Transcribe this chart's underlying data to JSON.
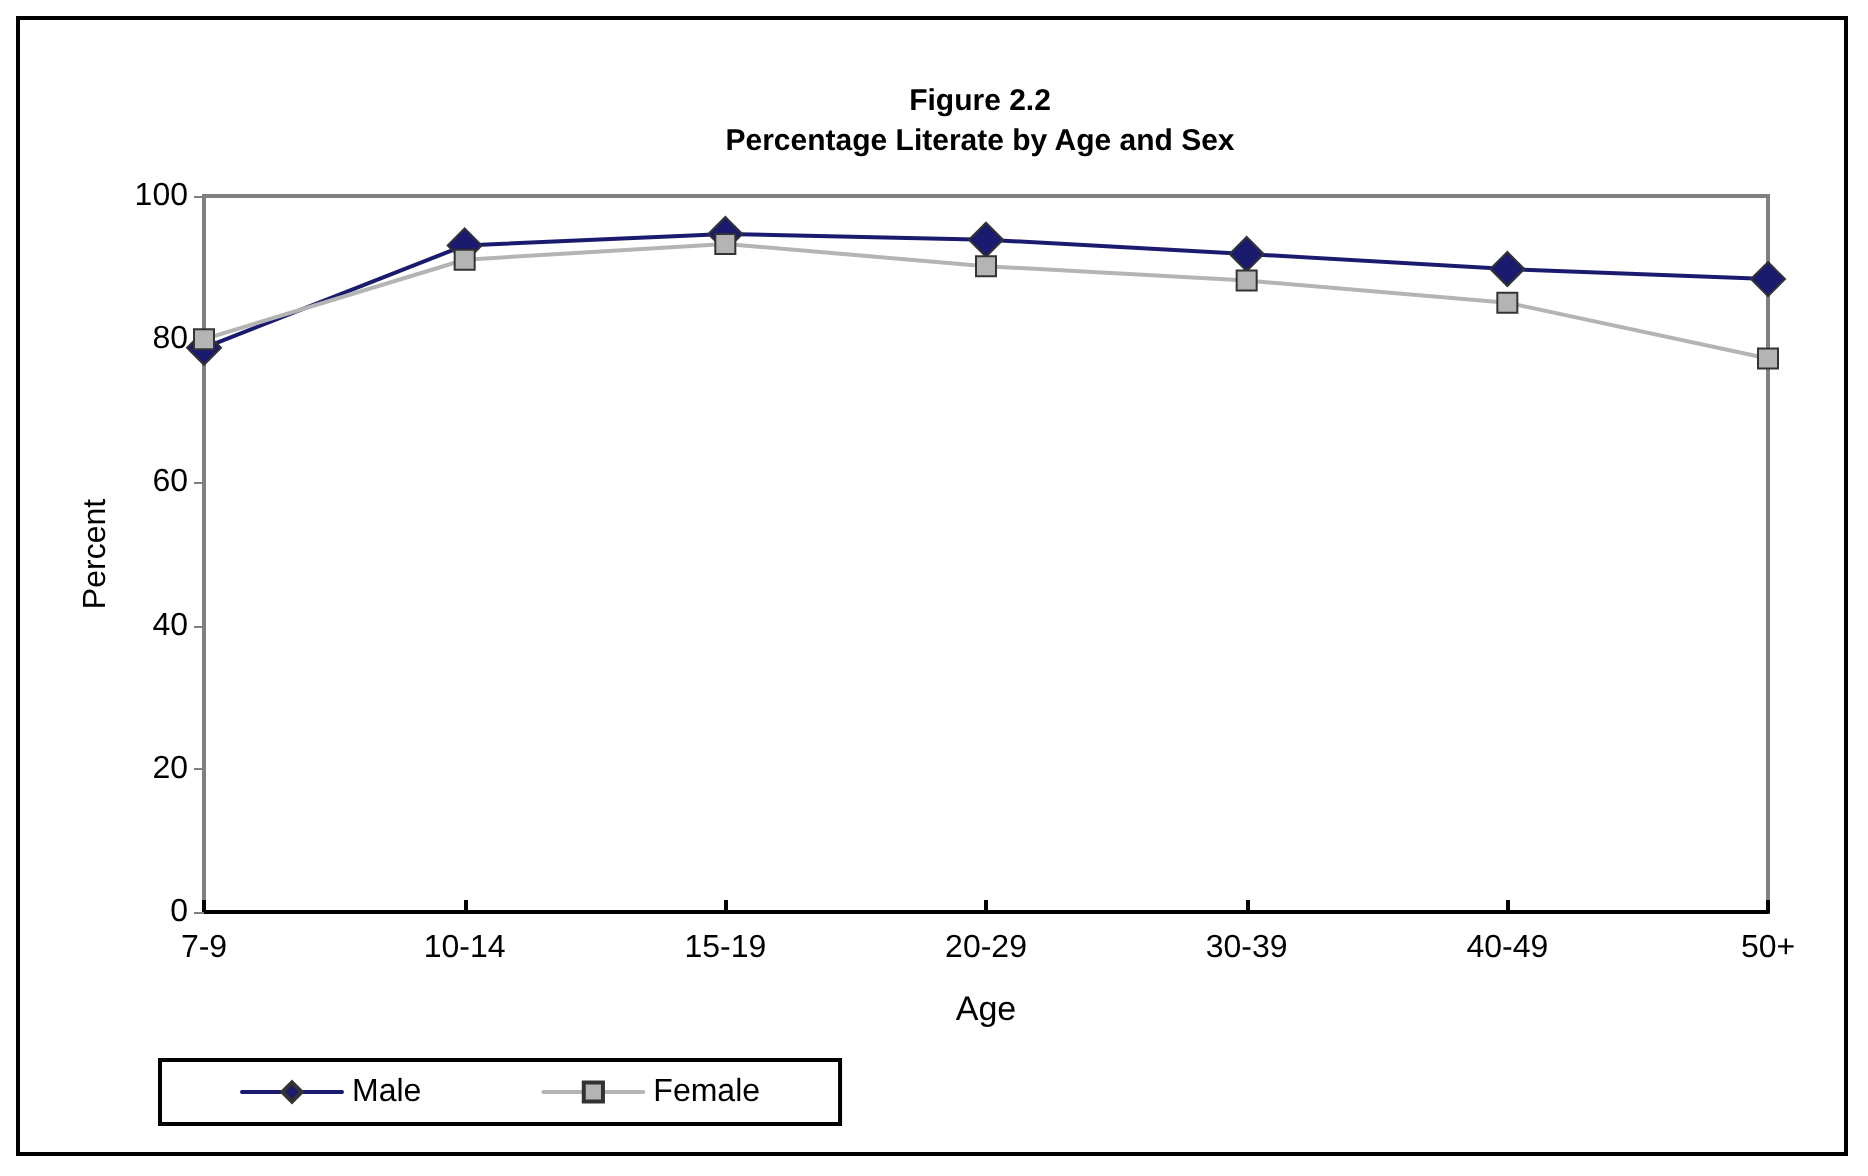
{
  "chart_data": {
    "type": "line",
    "title": "Figure 2.2",
    "subtitle": "Percentage Literate by Age and Sex",
    "xlabel": "Age",
    "ylabel": "Percent",
    "categories": [
      "7-9",
      "10-14",
      "15-19",
      "20-29",
      "30-39",
      "40-49",
      "50+"
    ],
    "series": [
      {
        "name": "Male",
        "color": "#1a1a6e",
        "marker": "diamond",
        "values": [
          78.8,
          93.1,
          94.7,
          93.9,
          91.9,
          89.8,
          88.4
        ]
      },
      {
        "name": "Female",
        "color": "#b4b4b4",
        "marker": "square",
        "values": [
          80,
          91.1,
          93.3,
          90.2,
          88.2,
          85.1,
          77.3
        ]
      }
    ],
    "ylim": [
      0,
      100
    ],
    "yticks": [
      0,
      20,
      40,
      60,
      80,
      100
    ],
    "grid": false,
    "legend": "bottom left",
    "line_style": "solid"
  }
}
